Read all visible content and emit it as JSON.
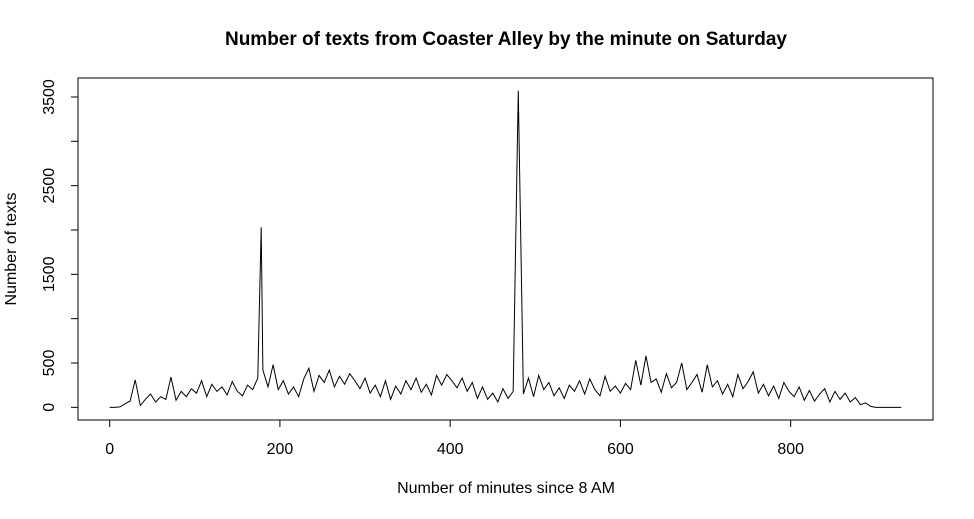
{
  "chart_data": {
    "type": "line",
    "title": "Number of texts from Coaster Alley by the minute on Saturday",
    "x_label": "Number of minutes since 8 AM",
    "y_label": "Number of texts",
    "xlim": [
      -37.2,
      967.2
    ],
    "ylim": [
      -143,
      3714
    ],
    "xticks": [
      0,
      200,
      400,
      600,
      800
    ],
    "yticks": [
      0,
      500,
      {
        "value": 1000,
        "label": null
      },
      1500,
      {
        "value": 2000,
        "label": null
      },
      2500,
      {
        "value": 3000,
        "label": null
      },
      3500
    ],
    "color": "#000000",
    "x": [
      0,
      6,
      12,
      18,
      24,
      30,
      36,
      42,
      48,
      54,
      60,
      66,
      72,
      78,
      84,
      90,
      96,
      102,
      108,
      114,
      120,
      126,
      132,
      138,
      144,
      150,
      156,
      162,
      168,
      174,
      178,
      180,
      186,
      192,
      198,
      204,
      210,
      216,
      222,
      228,
      234,
      240,
      246,
      252,
      258,
      264,
      270,
      276,
      282,
      288,
      294,
      300,
      306,
      312,
      318,
      324,
      330,
      336,
      342,
      348,
      354,
      360,
      366,
      372,
      378,
      384,
      390,
      396,
      402,
      408,
      414,
      420,
      426,
      432,
      438,
      444,
      450,
      456,
      462,
      468,
      474,
      480,
      486,
      492,
      498,
      504,
      510,
      516,
      522,
      528,
      534,
      540,
      546,
      552,
      558,
      564,
      570,
      576,
      582,
      588,
      594,
      600,
      606,
      612,
      618,
      624,
      630,
      636,
      642,
      648,
      654,
      660,
      666,
      672,
      678,
      684,
      690,
      696,
      702,
      708,
      714,
      720,
      726,
      732,
      738,
      744,
      750,
      756,
      762,
      768,
      774,
      780,
      786,
      792,
      798,
      804,
      810,
      816,
      822,
      828,
      834,
      840,
      846,
      852,
      858,
      864,
      870,
      876,
      882,
      888,
      894,
      900,
      906,
      912,
      918,
      924,
      930
    ],
    "values": [
      0,
      0,
      5,
      40,
      70,
      310,
      20,
      90,
      150,
      60,
      120,
      90,
      340,
      80,
      180,
      120,
      210,
      160,
      300,
      120,
      260,
      180,
      230,
      140,
      290,
      180,
      130,
      250,
      200,
      330,
      2030,
      420,
      230,
      480,
      200,
      300,
      150,
      230,
      120,
      320,
      440,
      180,
      360,
      280,
      420,
      230,
      350,
      260,
      380,
      300,
      210,
      330,
      160,
      250,
      120,
      300,
      90,
      240,
      150,
      300,
      200,
      330,
      170,
      260,
      140,
      360,
      250,
      370,
      300,
      220,
      330,
      180,
      280,
      100,
      230,
      90,
      160,
      60,
      210,
      100,
      180,
      3570,
      150,
      330,
      120,
      360,
      200,
      280,
      130,
      220,
      100,
      250,
      180,
      300,
      150,
      320,
      200,
      130,
      350,
      180,
      240,
      160,
      270,
      200,
      530,
      250,
      580,
      280,
      320,
      170,
      380,
      220,
      280,
      500,
      200,
      280,
      370,
      170,
      480,
      230,
      300,
      150,
      260,
      120,
      370,
      210,
      290,
      400,
      160,
      260,
      130,
      240,
      100,
      280,
      180,
      120,
      230,
      80,
      190,
      70,
      150,
      210,
      60,
      180,
      90,
      160,
      60,
      110,
      30,
      50,
      10,
      0,
      0,
      0,
      0,
      0,
      0
    ]
  }
}
